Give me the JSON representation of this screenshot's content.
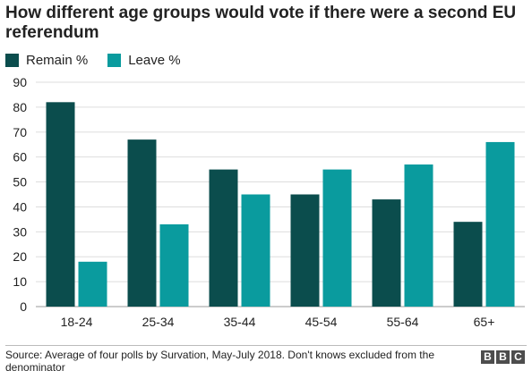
{
  "chart_data": {
    "type": "bar",
    "title": "How different age groups would vote if there were a second EU referendum",
    "categories": [
      "18-24",
      "25-34",
      "35-44",
      "45-54",
      "55-64",
      "65+"
    ],
    "series": [
      {
        "name": "Remain %",
        "color": "#0b4d4d",
        "values": [
          82,
          67,
          55,
          45,
          43,
          34
        ]
      },
      {
        "name": "Leave %",
        "color": "#0a9b9e",
        "values": [
          18,
          33,
          45,
          55,
          57,
          66
        ]
      }
    ],
    "ylim": [
      0,
      90
    ],
    "yticks": [
      0,
      10,
      20,
      30,
      40,
      50,
      60,
      70,
      80,
      90
    ],
    "grid": true,
    "legend_position": "top-left"
  },
  "footer": {
    "source": "Source: Average of four polls by Survation, May-July 2018. Don't knows excluded from the denominator",
    "logo_letters": [
      "B",
      "B",
      "C"
    ]
  }
}
